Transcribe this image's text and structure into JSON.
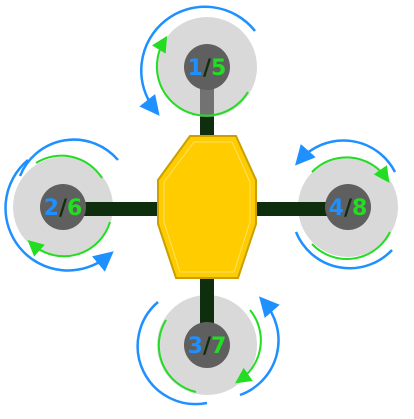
{
  "colors": {
    "body_fill": "#FFCC00",
    "body_stroke": "#C9A000",
    "arm_color": "#0E2E0E",
    "prop_disc": "#D9D9D9",
    "hub": "#5F5F5F",
    "blue_arrow": "#1E90FF",
    "green_arrow": "#22DD22",
    "background": "#FFFFFF"
  },
  "motors": [
    {
      "id": "top",
      "primary": "1",
      "separator": "/",
      "secondary": "5"
    },
    {
      "id": "left",
      "primary": "2",
      "separator": "/",
      "secondary": "6"
    },
    {
      "id": "bottom",
      "primary": "3",
      "separator": "/",
      "secondary": "7"
    },
    {
      "id": "right",
      "primary": "4",
      "separator": "/",
      "secondary": "8"
    }
  ]
}
